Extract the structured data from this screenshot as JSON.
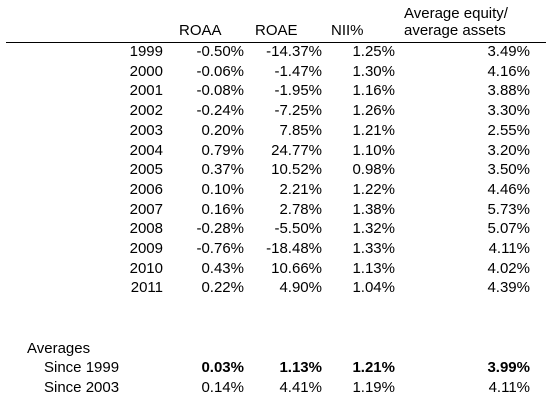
{
  "header": {
    "roaa": "ROAA",
    "roae": "ROAE",
    "nii": "NII%",
    "equity_line1": "Average equity/",
    "equity_line2": "average assets"
  },
  "rows": [
    {
      "year": "1999",
      "roaa": "-0.50%",
      "roae": "-14.37%",
      "nii": "1.25%",
      "equity": "3.49%"
    },
    {
      "year": "2000",
      "roaa": "-0.06%",
      "roae": "-1.47%",
      "nii": "1.30%",
      "equity": "4.16%"
    },
    {
      "year": "2001",
      "roaa": "-0.08%",
      "roae": "-1.95%",
      "nii": "1.16%",
      "equity": "3.88%"
    },
    {
      "year": "2002",
      "roaa": "-0.24%",
      "roae": "-7.25%",
      "nii": "1.26%",
      "equity": "3.30%"
    },
    {
      "year": "2003",
      "roaa": "0.20%",
      "roae": "7.85%",
      "nii": "1.21%",
      "equity": "2.55%"
    },
    {
      "year": "2004",
      "roaa": "0.79%",
      "roae": "24.77%",
      "nii": "1.10%",
      "equity": "3.20%"
    },
    {
      "year": "2005",
      "roaa": "0.37%",
      "roae": "10.52%",
      "nii": "0.98%",
      "equity": "3.50%"
    },
    {
      "year": "2006",
      "roaa": "0.10%",
      "roae": "2.21%",
      "nii": "1.22%",
      "equity": "4.46%"
    },
    {
      "year": "2007",
      "roaa": "0.16%",
      "roae": "2.78%",
      "nii": "1.38%",
      "equity": "5.73%"
    },
    {
      "year": "2008",
      "roaa": "-0.28%",
      "roae": "-5.50%",
      "nii": "1.32%",
      "equity": "5.07%"
    },
    {
      "year": "2009",
      "roaa": "-0.76%",
      "roae": "-18.48%",
      "nii": "1.33%",
      "equity": "4.11%"
    },
    {
      "year": "2010",
      "roaa": "0.43%",
      "roae": "10.66%",
      "nii": "1.13%",
      "equity": "4.02%"
    },
    {
      "year": "2011",
      "roaa": "0.22%",
      "roae": "4.90%",
      "nii": "1.04%",
      "equity": "4.39%"
    }
  ],
  "averages": {
    "title": "Averages",
    "since1999": {
      "label": "Since 1999",
      "roaa": "0.03%",
      "roae": "1.13%",
      "nii": "1.21%",
      "equity": "3.99%"
    },
    "since2003": {
      "label": "Since 2003",
      "roaa": "0.14%",
      "roae": "4.41%",
      "nii": "1.19%",
      "equity": "4.11%"
    }
  }
}
